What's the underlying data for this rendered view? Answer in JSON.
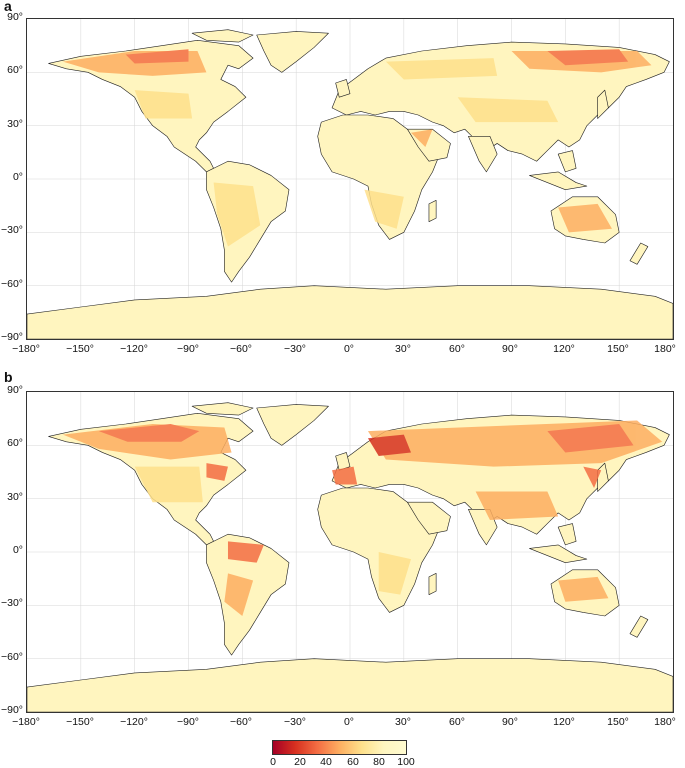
{
  "panels": [
    {
      "letter": "a"
    },
    {
      "letter": "b"
    }
  ],
  "axes": {
    "x_ticks": [
      "−180°",
      "−150°",
      "−120°",
      "−90°",
      "−60°",
      "−30°",
      "0°",
      "30°",
      "60°",
      "90°",
      "120°",
      "150°",
      "180°"
    ],
    "y_ticks": [
      "90°",
      "60°",
      "30°",
      "0°",
      "−30°",
      "−60°",
      "−90°"
    ]
  },
  "colorbar": {
    "ticks": [
      "0",
      "20",
      "40",
      "60",
      "80",
      "100"
    ],
    "colors": [
      "#a50026",
      "#d7301f",
      "#f46d43",
      "#fdae61",
      "#fee08b",
      "#fff6c0",
      "#fffbd0"
    ]
  },
  "style": {
    "land_color": "#fff5bf",
    "ocean_color": "#ffffff",
    "grid_color": "#cccccc",
    "border_color": "#222222"
  }
}
